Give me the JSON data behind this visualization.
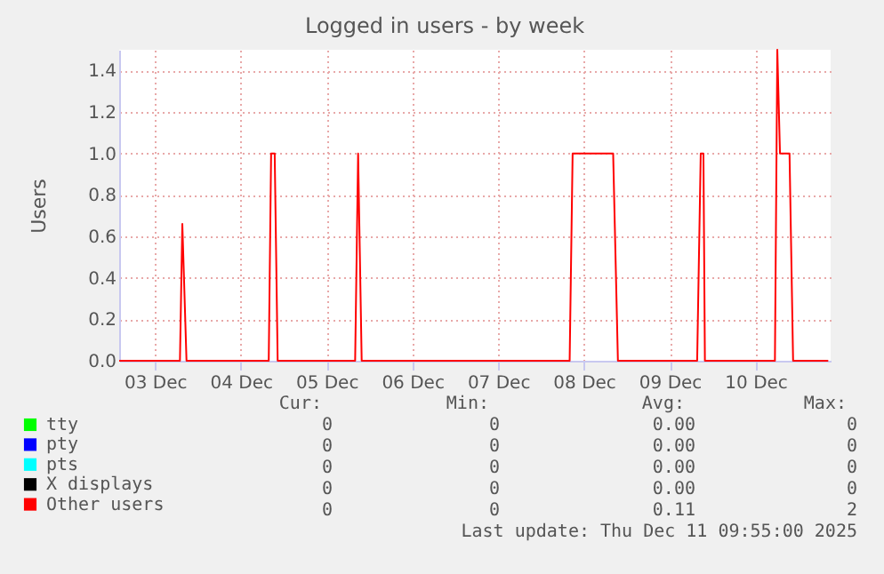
{
  "chart_data": {
    "type": "line",
    "title": "Logged in users - by week",
    "ylabel": "Users",
    "xlim": [
      "2025-12-03T02:00",
      "2025-12-11T09:00"
    ],
    "xticks": [
      {
        "value": "2025-12-03T12:00",
        "label": "03 Dec"
      },
      {
        "value": "2025-12-04T12:00",
        "label": "04 Dec"
      },
      {
        "value": "2025-12-05T12:00",
        "label": "05 Dec"
      },
      {
        "value": "2025-12-06T12:00",
        "label": "06 Dec"
      },
      {
        "value": "2025-12-07T12:00",
        "label": "07 Dec"
      },
      {
        "value": "2025-12-08T12:00",
        "label": "08 Dec"
      },
      {
        "value": "2025-12-09T12:00",
        "label": "09 Dec"
      },
      {
        "value": "2025-12-10T12:00",
        "label": "10 Dec"
      }
    ],
    "ylim": [
      0,
      1.5
    ],
    "yticks": [
      {
        "value": 0,
        "label": "0.0"
      },
      {
        "value": 0.2,
        "label": "0.2"
      },
      {
        "value": 0.4,
        "label": "0.4"
      },
      {
        "value": 0.6,
        "label": "0.6"
      },
      {
        "value": 0.8,
        "label": "0.8"
      },
      {
        "value": 1,
        "label": "1.0"
      },
      {
        "value": 1.2,
        "label": "1.2"
      },
      {
        "value": 1.4,
        "label": "1.4"
      }
    ],
    "grid": true,
    "legend": "bottom",
    "series": [
      {
        "name": "tty",
        "color": "#00ff00"
      },
      {
        "name": "pty",
        "color": "#0000ff"
      },
      {
        "name": "pts",
        "color": "#00ffff"
      },
      {
        "name": "X displays",
        "color": "#000000"
      },
      {
        "name": "Other users",
        "color": "#ff0000",
        "x": [
          "2025-12-03T02:00",
          "2025-12-03T19:00",
          "2025-12-03T19:40",
          "2025-12-03T20:50",
          "2025-12-04T19:50",
          "2025-12-04T20:30",
          "2025-12-04T21:30",
          "2025-12-04T22:20",
          "2025-12-05T20:00",
          "2025-12-05T20:50",
          "2025-12-05T21:50",
          "2025-12-08T08:00",
          "2025-12-08T08:50",
          "2025-12-08T20:10",
          "2025-12-08T21:30",
          "2025-12-09T19:40",
          "2025-12-09T20:40",
          "2025-12-09T21:25",
          "2025-12-09T21:50",
          "2025-12-10T17:25",
          "2025-12-10T18:05",
          "2025-12-10T18:50",
          "2025-12-10T21:30",
          "2025-12-10T22:30",
          "2025-12-11T08:20"
        ],
        "values": [
          0,
          0,
          0.66,
          0,
          0,
          1,
          1,
          0,
          0,
          1,
          0,
          0,
          1,
          1,
          0,
          0,
          1,
          1,
          0,
          0,
          1.5,
          1,
          1,
          0,
          0
        ]
      }
    ],
    "annotations": [
      "Cur:",
      "Min:",
      "Avg:",
      "Max:",
      "0",
      "0",
      "0.00",
      "0",
      "0",
      "0",
      "0.00",
      "0",
      "0",
      "0",
      "0.00",
      "0",
      "0",
      "0",
      "0.00",
      "0",
      "0",
      "0",
      "0.11",
      "2",
      "Last update: Thu Dec 11 09:55:00 2025"
    ]
  }
}
